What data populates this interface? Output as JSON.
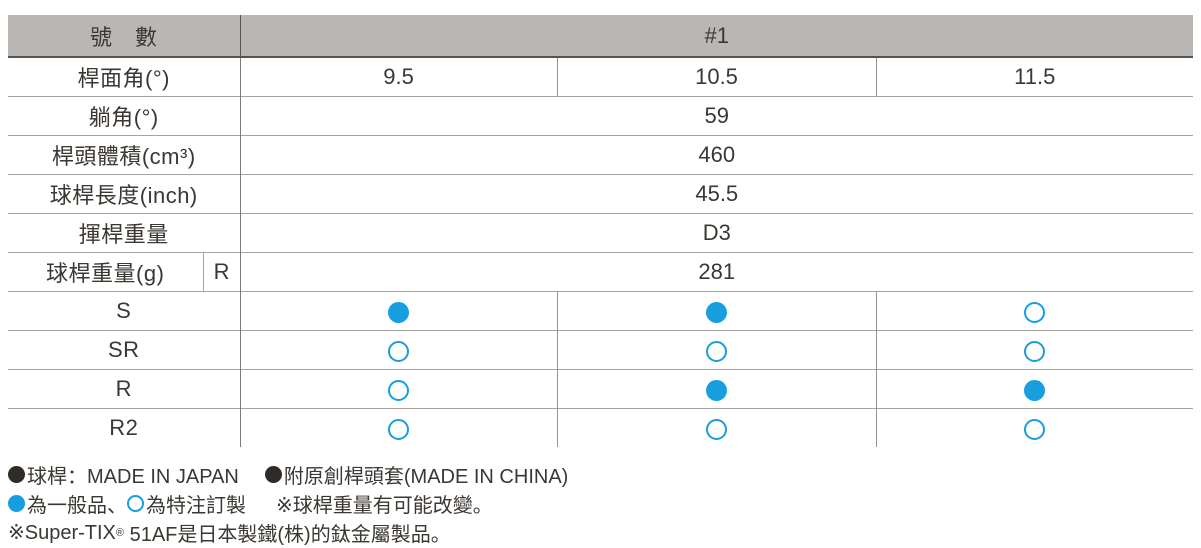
{
  "colors": {
    "accent_blue": "#189EDF",
    "header_bg": "#B9B6B4",
    "text": "#3B3733",
    "footnote_dot_black": "#2F2B27"
  },
  "table": {
    "header": {
      "number_label": "號　數",
      "club_label": "#1"
    },
    "rows": [
      {
        "label": "桿面角(°)",
        "values": [
          "9.5",
          "10.5",
          "11.5"
        ]
      },
      {
        "label": "躺角(°)",
        "value": "59"
      },
      {
        "label": "桿頭體積(cm³)",
        "value": "460"
      },
      {
        "label": "球桿長度(inch)",
        "value": "45.5"
      },
      {
        "label": "揮桿重量",
        "value": "D3"
      },
      {
        "label": "球桿重量(g)",
        "sub_label": "R",
        "value": "281"
      },
      {
        "label": "S",
        "circles": [
          "filled",
          "filled",
          "empty"
        ]
      },
      {
        "label": "SR",
        "circles": [
          "empty",
          "empty",
          "empty"
        ]
      },
      {
        "label": "R",
        "circles": [
          "empty",
          "filled",
          "filled"
        ]
      },
      {
        "label": "R2",
        "circles": [
          "empty",
          "empty",
          "empty"
        ]
      }
    ]
  },
  "footnotes": {
    "line1": {
      "item1": "球桿：MADE IN JAPAN",
      "item2": "附原創桿頭套(MADE IN CHINA)"
    },
    "line2": {
      "item1": "為一般品、",
      "item2": "為特注訂製",
      "note": "※球桿重量有可能改變。"
    },
    "line3": {
      "prefix": "※Super-TIX",
      "sup": "®",
      "suffix": " 51AF是日本製鐵(株)的鈦金屬製品。"
    }
  }
}
